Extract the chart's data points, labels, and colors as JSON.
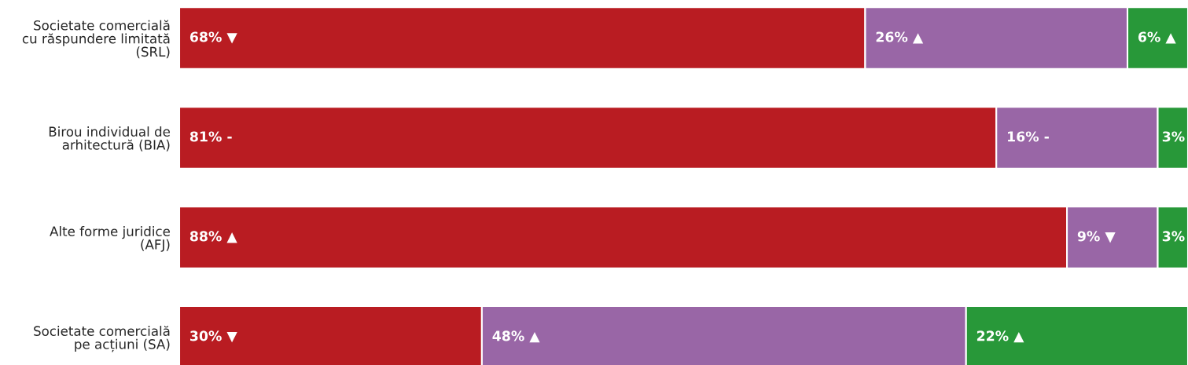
{
  "chart_data": {
    "type": "bar",
    "orientation": "horizontal",
    "stacked": true,
    "categories": [
      "Societate comercială\ncu răspundere limitată\n(SRL)",
      "Birou individual de\narhitectură (BIA)",
      "Alte forme juridice\n(AFJ)",
      "Societate comercială\npe acțiuni (SA)"
    ],
    "xlim": [
      0,
      100
    ],
    "tick_labels": "y",
    "legend": false,
    "series": [
      {
        "color": "#b91c22",
        "values": [
          68,
          81,
          88,
          30
        ],
        "value_labels": [
          "68% ▼",
          "81% -",
          "88% ▲",
          "30% ▼"
        ]
      },
      {
        "color": "#9966a6",
        "values": [
          26,
          16,
          9,
          48
        ],
        "value_labels": [
          "26% ▲",
          "16% -",
          "9% ▼",
          "48% ▲"
        ]
      },
      {
        "color": "#289839",
        "values": [
          6,
          3,
          3,
          22
        ],
        "value_labels": [
          "6% ▲",
          "3%",
          "3%",
          "22% ▲"
        ]
      }
    ]
  }
}
